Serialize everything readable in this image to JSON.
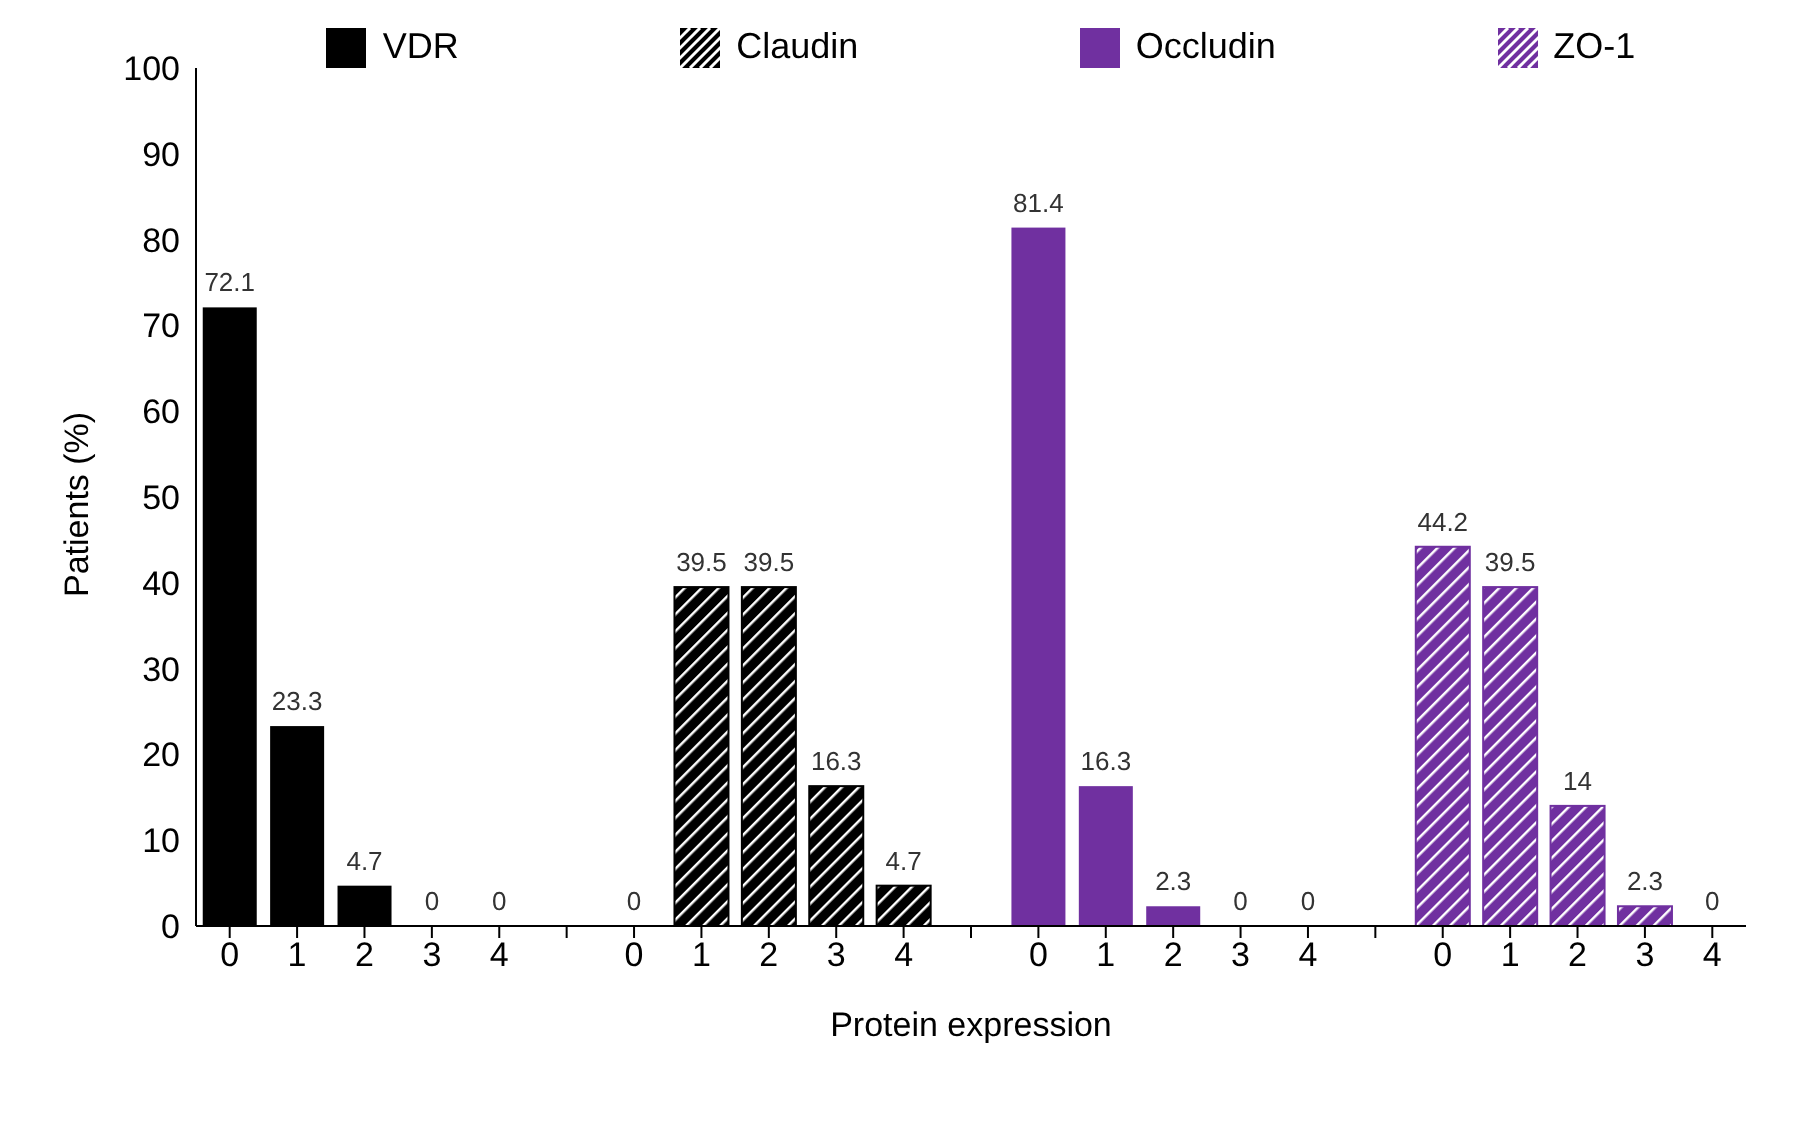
{
  "chart_data": {
    "type": "bar",
    "xlabel": "Protein expression",
    "ylabel": "Patients (%)",
    "categories": [
      "0",
      "1",
      "2",
      "3",
      "4",
      null,
      "0",
      "1",
      "2",
      "3",
      "4",
      null,
      "0",
      "1",
      "2",
      "3",
      "4",
      null,
      "0",
      "1",
      "2",
      "3",
      "4"
    ],
    "series": [
      {
        "name": "VDR",
        "color": "#000000",
        "values": [
          72.1,
          23.3,
          4.7,
          0,
          0,
          null,
          null,
          null,
          null,
          null,
          null,
          null,
          null,
          null,
          null,
          null,
          null,
          null,
          null,
          null,
          null,
          null,
          null
        ]
      },
      {
        "name": "Claudin",
        "color": "#000000",
        "values": [
          null,
          null,
          null,
          null,
          null,
          null,
          0,
          39.5,
          39.5,
          16.3,
          4.7,
          null,
          null,
          null,
          null,
          null,
          null,
          null,
          null,
          null,
          null,
          null,
          null
        ]
      },
      {
        "name": "Occludin",
        "color": "#7030a0",
        "values": [
          null,
          null,
          null,
          null,
          null,
          null,
          null,
          null,
          null,
          null,
          null,
          null,
          81.4,
          16.3,
          2.3,
          0,
          0,
          null,
          null,
          null,
          null,
          null,
          null
        ]
      },
      {
        "name": "ZO-1",
        "color": "#7030a0",
        "values": [
          null,
          null,
          null,
          null,
          null,
          null,
          null,
          null,
          null,
          null,
          null,
          null,
          null,
          null,
          null,
          null,
          null,
          null,
          44.2,
          39.5,
          14,
          2.3,
          0
        ]
      }
    ],
    "ylim": [
      0,
      100
    ],
    "yticks": [
      0,
      10,
      20,
      30,
      40,
      50,
      60,
      70,
      80,
      90,
      100
    ],
    "data_labels": true,
    "legend": "top",
    "grid": false
  }
}
